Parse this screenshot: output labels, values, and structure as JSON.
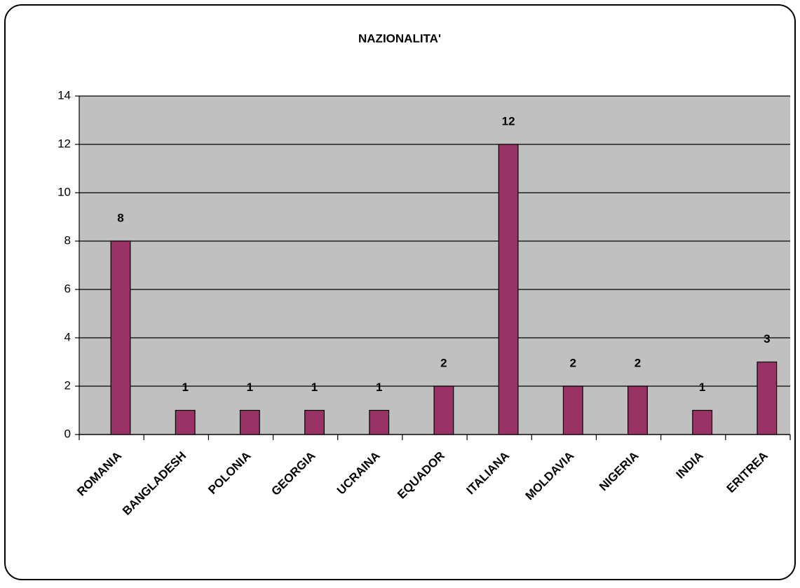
{
  "chart_data": {
    "type": "bar",
    "title": "NAZIONALITA'",
    "categories": [
      "ROMANIA",
      "BANGLADESH",
      "POLONIA",
      "GEORGIA",
      "UCRAINA",
      "EQUADOR",
      "ITALIANA",
      "MOLDAVIA",
      "NIGERIA",
      "INDIA",
      "ERITREA"
    ],
    "values": [
      8,
      1,
      1,
      1,
      1,
      2,
      12,
      2,
      2,
      1,
      3
    ],
    "color": "#993366",
    "ylim": [
      0,
      14
    ],
    "yticks": [
      0,
      2,
      4,
      6,
      8,
      10,
      12,
      14
    ],
    "grid": true
  }
}
